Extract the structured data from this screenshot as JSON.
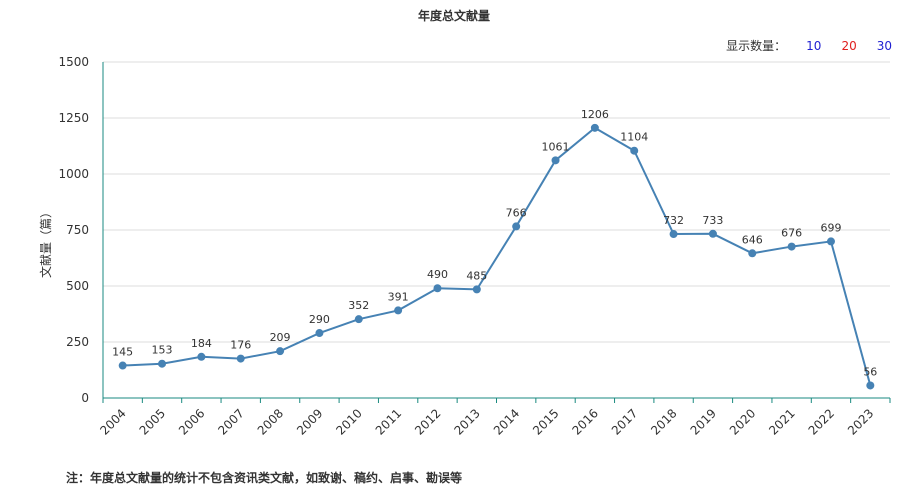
{
  "title": "年度总文献量",
  "count_selector": {
    "label": "显示数量：",
    "options": [
      {
        "text": "10",
        "color": "#1f1fd1"
      },
      {
        "text": "20",
        "color": "#e0201f"
      },
      {
        "text": "30",
        "color": "#1f1fd1"
      }
    ]
  },
  "note": "注：年度总文献量的统计不包含资讯类文献，如致谢、稿约、启事、勘误等",
  "chart_data": {
    "type": "line",
    "title": "年度总文献量",
    "ylabel": "文献量（篇）",
    "xlabel": "",
    "categories": [
      "2004",
      "2005",
      "2006",
      "2007",
      "2008",
      "2009",
      "2010",
      "2011",
      "2012",
      "2013",
      "2014",
      "2015",
      "2016",
      "2017",
      "2018",
      "2019",
      "2020",
      "2021",
      "2022",
      "2023"
    ],
    "series": [
      {
        "values": [
          145,
          153,
          184,
          176,
          209,
          290,
          352,
          391,
          490,
          485,
          766,
          1061,
          1206,
          1104,
          732,
          733,
          646,
          676,
          699,
          56
        ]
      }
    ],
    "ylim": [
      0,
      1500
    ],
    "yticks": [
      0,
      250,
      500,
      750,
      1000,
      1250,
      1500
    ],
    "grid": true,
    "line_color": "#4682b4",
    "axis_color": "#1a8a80"
  }
}
